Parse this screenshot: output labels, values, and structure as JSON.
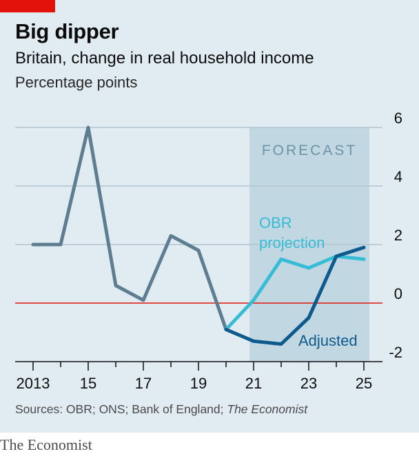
{
  "header": {
    "title": "Big dipper",
    "subtitle": "Britain, change in real household income",
    "units": "Percentage points"
  },
  "footer": {
    "source_prefix": "Sources: OBR; ONS; Bank of England; ",
    "source_italic": "The Economist",
    "brand": "The Economist"
  },
  "colors": {
    "background": "#e1ecf2",
    "forecast_band": "#c1d7e2",
    "gridline": "#b3c4cf",
    "zero_line": "#e3120b",
    "accent_tag": "#e3120b",
    "historical": "#5e7d91",
    "obr_projection": "#36bcd4",
    "adjusted": "#0f5a8c",
    "forecast_label": "#6e93a8"
  },
  "chart_data": {
    "type": "line",
    "title": "Big dipper",
    "subtitle": "Britain, change in real household income",
    "ylabel": "Percentage points",
    "xlim": [
      2013,
      2025
    ],
    "ylim": [
      -2,
      6
    ],
    "y_ticks": [
      6,
      4,
      2,
      0,
      -2
    ],
    "x_ticks": [
      {
        "value": 2013,
        "label": "2013"
      },
      {
        "value": 2015,
        "label": "15"
      },
      {
        "value": 2017,
        "label": "17"
      },
      {
        "value": 2019,
        "label": "19"
      },
      {
        "value": 2021,
        "label": "21"
      },
      {
        "value": 2023,
        "label": "23"
      },
      {
        "value": 2025,
        "label": "25"
      }
    ],
    "grid": true,
    "forecast": {
      "label": "FORECAST",
      "start": 2020.85,
      "end": 2025.2
    },
    "series": [
      {
        "key": "historical",
        "x": [
          2013,
          2014,
          2015,
          2016,
          2017,
          2018,
          2019,
          2020
        ],
        "y": [
          2.0,
          2.0,
          6.0,
          0.6,
          0.1,
          2.3,
          1.8,
          -0.9
        ]
      },
      {
        "key": "obr",
        "name": "OBR projection",
        "x": [
          2020,
          2021,
          2022,
          2023,
          2024,
          2025
        ],
        "y": [
          -0.9,
          0.1,
          1.5,
          1.2,
          1.6,
          1.5
        ]
      },
      {
        "key": "adjusted",
        "name": "Adjusted",
        "x": [
          2020,
          2021,
          2022,
          2023,
          2024,
          2025
        ],
        "y": [
          -0.9,
          -1.3,
          -1.4,
          -0.5,
          1.6,
          1.9
        ]
      }
    ],
    "annotations": {
      "obr_line1": "OBR",
      "obr_line2": "projection",
      "adjusted": "Adjusted"
    }
  }
}
